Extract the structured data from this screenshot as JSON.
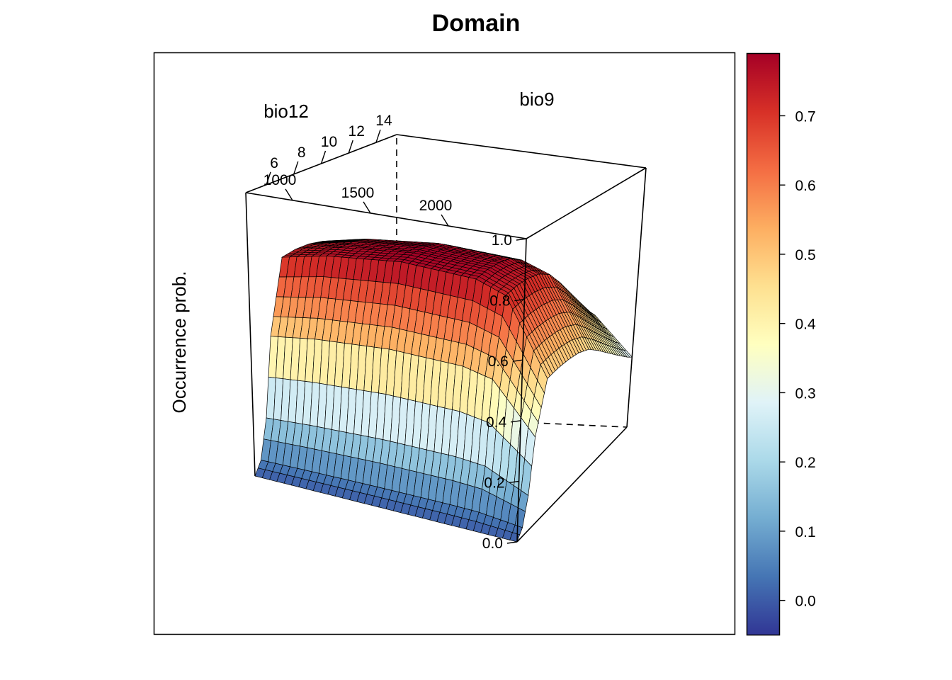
{
  "chart_data": {
    "type": "surface3d",
    "title": "Domain",
    "zlabel": "Occurrence prob.",
    "axes": {
      "x": {
        "label": "bio9",
        "range": [
          4.5,
          15.5
        ],
        "ticks": [
          "6",
          "8",
          "10",
          "12",
          "14"
        ],
        "tick_values": [
          6,
          8,
          10,
          12,
          14
        ]
      },
      "y": {
        "label": "bio12",
        "range": [
          700,
          2500
        ],
        "ticks": [
          "1000",
          "1500",
          "2000"
        ],
        "tick_values": [
          1000,
          1500,
          2000
        ]
      },
      "z": {
        "range": [
          0,
          1
        ],
        "ticks": [
          "0.0",
          "0.2",
          "0.4",
          "0.6",
          "0.8",
          "1.0"
        ],
        "tick_values": [
          0,
          0.2,
          0.4,
          0.6,
          0.8,
          1.0
        ]
      }
    },
    "surface": {
      "description_x_profile": {
        "x": [
          4.5,
          5.0,
          5.5,
          6.0,
          7.0,
          8.0,
          9.0,
          10.0,
          11.0,
          12.0,
          13.0,
          14.0,
          15.0,
          15.5
        ],
        "z": [
          0.0,
          0.05,
          0.2,
          0.5,
          0.78,
          0.79,
          0.79,
          0.78,
          0.75,
          0.69,
          0.62,
          0.55,
          0.48,
          0.45
        ]
      },
      "description_y_profile": {
        "y": [
          700,
          1000,
          1500,
          2000,
          2200,
          2500
        ],
        "factor": [
          0.93,
          0.97,
          1.0,
          0.98,
          0.93,
          0.6
        ]
      }
    },
    "colorbar": {
      "ticks": [
        "0.0",
        "0.1",
        "0.2",
        "0.3",
        "0.4",
        "0.5",
        "0.6",
        "0.7"
      ],
      "tick_values": [
        0,
        0.1,
        0.2,
        0.3,
        0.4,
        0.5,
        0.6,
        0.7
      ],
      "range": [
        -0.05,
        0.79
      ],
      "colors": [
        "#313695",
        "#4575b4",
        "#74add1",
        "#abd9e9",
        "#e0f3f8",
        "#ffffbf",
        "#fee090",
        "#fdae61",
        "#f46d43",
        "#d73027",
        "#a50026"
      ]
    }
  }
}
